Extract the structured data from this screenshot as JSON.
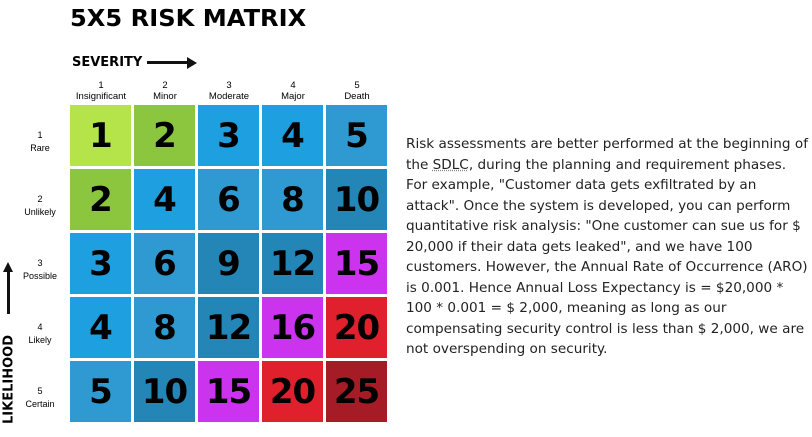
{
  "title": "5X5 RISK MATRIX",
  "severity_label": "SEVERITY",
  "likelihood_label": "LIKELIHOOD",
  "severity_levels": [
    {
      "num": "1",
      "name": "Insignificant"
    },
    {
      "num": "2",
      "name": "Minor"
    },
    {
      "num": "3",
      "name": "Moderate"
    },
    {
      "num": "4",
      "name": "Major"
    },
    {
      "num": "5",
      "name": "Death"
    }
  ],
  "likelihood_levels": [
    {
      "num": "1",
      "name": "Rare"
    },
    {
      "num": "2",
      "name": "Unlikely"
    },
    {
      "num": "3",
      "name": "Possible"
    },
    {
      "num": "4",
      "name": "Likely"
    },
    {
      "num": "5",
      "name": "Certain"
    }
  ],
  "matrix": [
    [
      {
        "v": "1",
        "c": "#b5e44a"
      },
      {
        "v": "2",
        "c": "#8cc63f"
      },
      {
        "v": "3",
        "c": "#1e9fe0"
      },
      {
        "v": "4",
        "c": "#1e9fe0"
      },
      {
        "v": "5",
        "c": "#2f9ad1"
      }
    ],
    [
      {
        "v": "2",
        "c": "#8cc63f"
      },
      {
        "v": "4",
        "c": "#1e9fe0"
      },
      {
        "v": "6",
        "c": "#2f9ad1"
      },
      {
        "v": "8",
        "c": "#2f9ad1"
      },
      {
        "v": "10",
        "c": "#2386b6"
      }
    ],
    [
      {
        "v": "3",
        "c": "#1e9fe0"
      },
      {
        "v": "6",
        "c": "#2f9ad1"
      },
      {
        "v": "9",
        "c": "#2386b6"
      },
      {
        "v": "12",
        "c": "#2386b6"
      },
      {
        "v": "15",
        "c": "#cc33ee"
      }
    ],
    [
      {
        "v": "4",
        "c": "#1e9fe0"
      },
      {
        "v": "8",
        "c": "#2f9ad1"
      },
      {
        "v": "12",
        "c": "#2386b6"
      },
      {
        "v": "16",
        "c": "#cc33ee"
      },
      {
        "v": "20",
        "c": "#e0202c"
      }
    ],
    [
      {
        "v": "5",
        "c": "#2f9ad1"
      },
      {
        "v": "10",
        "c": "#2386b6"
      },
      {
        "v": "15",
        "c": "#cc33ee"
      },
      {
        "v": "20",
        "c": "#e0202c"
      },
      {
        "v": "25",
        "c": "#a61c26"
      }
    ]
  ],
  "description": {
    "part1": "Risk assessments are better performed at the beginning of the ",
    "abbr": "SDLC",
    "part2": ", during the planning and requirement phases. For example, \"Customer data gets exfiltrated by an attack\". Once the system is developed, you can perform quantitative risk analysis: \"One customer can sue us for $ 20,000 if their data gets leaked\", and we have 100 customers. However, the Annual Rate of Occurrence (ARO) is 0.001. Hence Annual Loss Expectancy is = $20,000 * 100 * 0.001 = $ 2,000, meaning as long as our compensating security control is less than $ 2,000, we are not overspending on security."
  }
}
